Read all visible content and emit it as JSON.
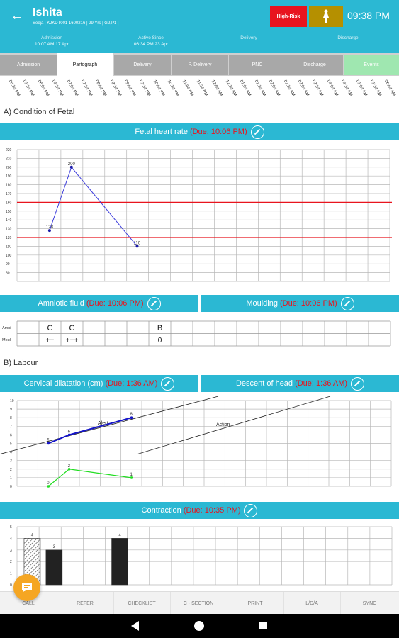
{
  "header": {
    "back_icon": "arrow-left-icon",
    "patient_name": "Ishita",
    "patient_sub": "Seeja | KJKDT001 1600216 | 29 Yrs | G2,P1 |",
    "risk_badge": "High-Risk",
    "status_icon": "pregnant-woman-icon",
    "time": "09:38 PM",
    "info": [
      {
        "label": "Admission",
        "value": "10:07 AM 17 Apr"
      },
      {
        "label": "Active Since",
        "value": "06:34 PM 23 Apr"
      },
      {
        "label": "Delivery",
        "value": ""
      },
      {
        "label": "Discharge",
        "value": ""
      }
    ],
    "colors": {
      "primary": "#2bb8d3",
      "risk": "#e8141e",
      "figure_badge": "#b59000"
    }
  },
  "tabs": [
    "Admission",
    "Partograph",
    "Delivery",
    "P. Delivery",
    "PNC",
    "Discharge",
    "Events"
  ],
  "active_tab": "Partograph",
  "time_axis": [
    "05:34 PM",
    "05:34 PM",
    "06:04 PM",
    "06:34 PM",
    "07:04 PM",
    "07:34 PM",
    "08:04 PM",
    "08:34 PM",
    "09:04 PM",
    "09:34 PM",
    "10:04 PM",
    "10:34 PM",
    "11:04 PM",
    "11:34 PM",
    "12:04 AM",
    "12:34 AM",
    "01:04 AM",
    "01:34 AM",
    "02:04 AM",
    "02:34 AM",
    "03:04 AM",
    "03:34 AM",
    "04:04 AM",
    "04:34 AM",
    "05:04 AM",
    "05:34 AM",
    "06:04 AM"
  ],
  "sections": {
    "a_title": "A) Condition of Fetal",
    "b_title": "B) Labour"
  },
  "fetal": {
    "label": "Fetal heart rate",
    "due": "(Due: 10:06 PM)",
    "edit_icon": "pencil-icon"
  },
  "amniotic": {
    "label": "Amniotic fluid",
    "due": "(Due: 10:06 PM)",
    "edit_icon": "pencil-icon"
  },
  "moulding": {
    "label": "Moulding",
    "due": "(Due: 10:06 PM)",
    "edit_icon": "pencil-icon"
  },
  "amni_table": {
    "row_labels": [
      "Amni",
      "Moul"
    ],
    "amni_values": [
      "C",
      "C",
      "",
      "",
      "",
      "B"
    ],
    "moul_values": [
      "++",
      "+++",
      "",
      "",
      "",
      "0"
    ]
  },
  "cervical": {
    "label": "Cervical dilatation (cm)",
    "due": "(Due: 1:36 AM)",
    "edit_icon": "pencil-icon"
  },
  "descent": {
    "label": "Descent of head",
    "due": "(Due: 1:36 AM)",
    "edit_icon": "pencil-icon"
  },
  "contraction": {
    "label": "Contraction",
    "due": "(Due: 10:35 PM)",
    "edit_icon": "pencil-icon"
  },
  "footer": [
    "CALL",
    "REFER",
    "CHECKLIST",
    "C - SECTION",
    "PRINT",
    "L/D/A",
    "SYNC"
  ],
  "fab_icon": "chat-bubble-icon",
  "nav": {
    "back_icon": "nav-back-icon",
    "home_icon": "nav-home-icon",
    "recent_icon": "nav-recent-icon"
  },
  "chart_data": [
    {
      "type": "line",
      "title": "Fetal heart rate",
      "ylim": [
        70,
        220
      ],
      "yticks": [
        80,
        90,
        100,
        110,
        120,
        130,
        140,
        150,
        160,
        170,
        180,
        190,
        200,
        210,
        220
      ],
      "x": [
        1,
        2,
        5
      ],
      "series": [
        {
          "values": [
            128,
            200,
            110
          ],
          "labels": [
            "128",
            "200",
            "110"
          ],
          "color": "#3c3cdc"
        }
      ],
      "reference_lines": [
        {
          "y": 160,
          "color": "#e8141e"
        },
        {
          "y": 120,
          "color": "#e8141e"
        }
      ],
      "grid": true
    },
    {
      "type": "line",
      "title": "Cervical dilatation (cm)",
      "ylim": [
        0,
        10
      ],
      "yticks": [
        0,
        1,
        2,
        3,
        4,
        5,
        6,
        7,
        8,
        9,
        10
      ],
      "x": [
        1,
        2,
        5
      ],
      "series": [
        {
          "values": [
            5,
            6,
            8
          ],
          "labels": [
            "5",
            "6",
            "8"
          ],
          "color": "#1414c8"
        },
        {
          "values": [
            0,
            2,
            1
          ],
          "labels": [
            "0",
            "2",
            "1"
          ],
          "color": "#22dd22"
        }
      ],
      "reference_lines": [
        {
          "label": "Alert",
          "from": [
            0,
            4
          ],
          "to": [
            9,
            10
          ]
        },
        {
          "label": "Action",
          "from": [
            6,
            4
          ],
          "to": [
            15,
            10
          ]
        }
      ],
      "grid": true
    },
    {
      "type": "bar",
      "title": "Contraction",
      "ylim": [
        0,
        5
      ],
      "yticks": [
        0,
        1,
        2,
        3,
        4,
        5
      ],
      "categories": [
        1,
        2,
        3,
        4,
        5
      ],
      "values": [
        4,
        3,
        0,
        0,
        4
      ],
      "labels": [
        "4",
        "3",
        "",
        "",
        "4"
      ],
      "styles": [
        "hatched",
        "solid",
        "",
        "",
        "solid"
      ]
    }
  ]
}
